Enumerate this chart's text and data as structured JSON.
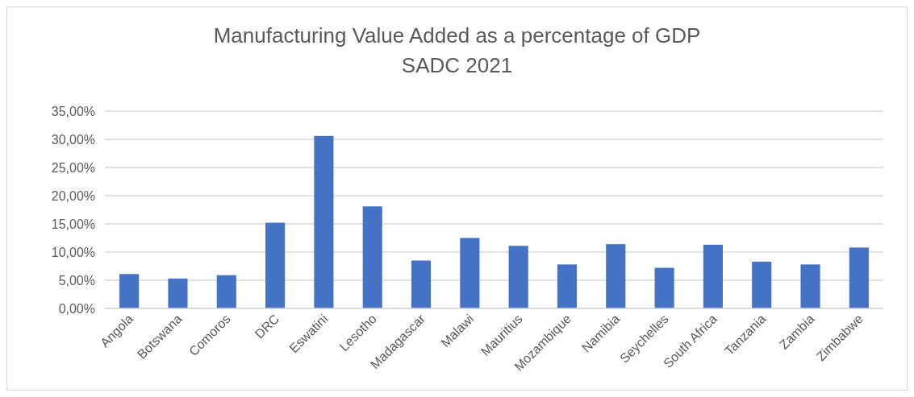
{
  "chart_data": {
    "type": "bar",
    "title": "Manufacturing Value Added as a percentage of GDP",
    "subtitle": "SADC 2021",
    "categories": [
      "Angola",
      "Botswana",
      "Comoros",
      "DRC",
      "Eswatini",
      "Lesotho",
      "Madagascar",
      "Malawi",
      "Mauritius",
      "Mozambique",
      "Namibia",
      "Seychelles",
      "South Africa",
      "Tanzania",
      "Zambia",
      "Zimbabwe"
    ],
    "values": [
      6.1,
      5.3,
      5.9,
      15.2,
      30.6,
      18.1,
      8.5,
      12.5,
      11.1,
      7.8,
      11.4,
      7.2,
      11.3,
      8.3,
      7.8,
      10.8
    ],
    "color": "#4472c4",
    "ylim": [
      0,
      35
    ],
    "yticks": [
      {
        "value": 0,
        "label": "0,00%"
      },
      {
        "value": 5,
        "label": "5,00%"
      },
      {
        "value": 10,
        "label": "10,00%"
      },
      {
        "value": 15,
        "label": "15,00%"
      },
      {
        "value": 20,
        "label": "20,00%"
      },
      {
        "value": 25,
        "label": "25,00%"
      },
      {
        "value": 30,
        "label": "30,00%"
      },
      {
        "value": 35,
        "label": "35,00%"
      }
    ],
    "grid": "y"
  }
}
